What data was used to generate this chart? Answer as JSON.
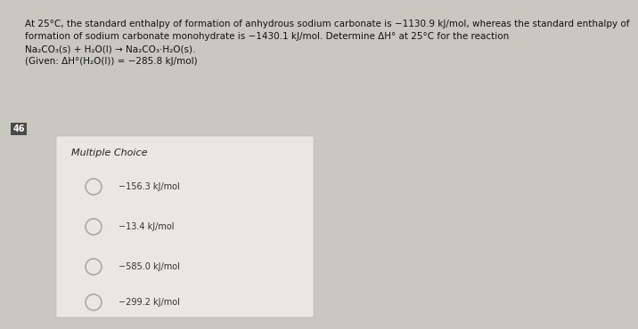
{
  "background_color": "#c8c7c0",
  "box_color": "#e8e7e2",
  "header_text_line1": "At 25°C, the standard enthalpy of formation of anhydrous sodium carbonate is −1130.9 kJ/mol, whereas the standard enthalpy of",
  "header_text_line2": "formation of sodium carbonate monohydrate is −1430.1 kJ/mol. Determine ΔH° at 25°C for the reaction",
  "header_text_line3": "Na₂CO₃(s) + H₂O(l) → Na₂CO₃·H₂O(s).",
  "header_text_line4": "(Given: ΔH°(H₂O(l)) = −285.8 kJ/mol)",
  "section_label": "Multiple Choice",
  "choices": [
    "−156.3 kJ/mol",
    "−13.4 kJ/mol",
    "−585.0 kJ/mol",
    "−299.2 kJ/mol"
  ],
  "question_number": "46",
  "header_font_size": 7.5,
  "choice_font_size": 7.0,
  "section_font_size": 8.0,
  "header_text_color": "#111111",
  "choice_text_color": "#333333",
  "section_text_color": "#222222",
  "circle_edge_color": "#aaaaaa",
  "number_tag_bg": "#4a4a4a",
  "number_tag_color": "#ffffff"
}
